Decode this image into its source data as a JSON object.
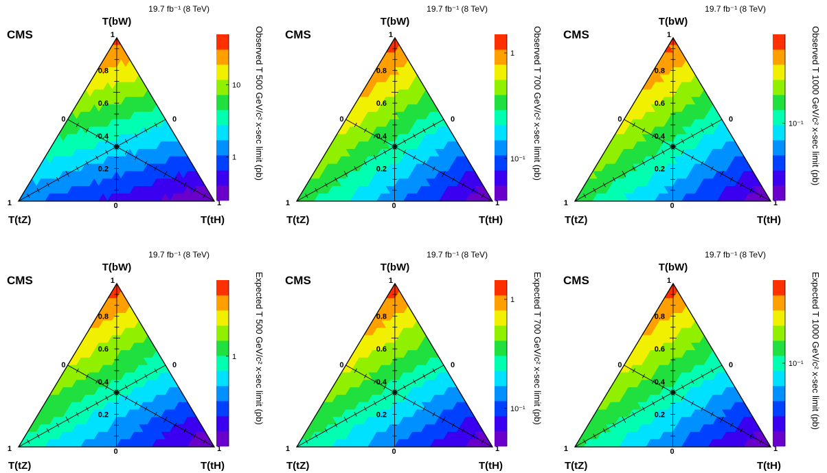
{
  "figure": {
    "lumi": "19.7 fb⁻¹ (8 TeV)",
    "experiment": "CMS"
  },
  "chart_data": [
    {
      "type": "heatmap",
      "subtype": "ternary",
      "row": "observed",
      "mass_label": "T 500",
      "title": "",
      "experiment_label": "CMS",
      "lumi_label": "19.7 fb⁻¹ (8 TeV)",
      "vertices": {
        "top": "T(bW)",
        "left": "T(tZ)",
        "right": "T(tH)"
      },
      "vertex_ticks": {
        "top": "1",
        "left": "1",
        "right": "1",
        "bottom_center": "0",
        "left_edge_mid": "0",
        "right_edge_mid": "0"
      },
      "axis_ticks": [
        "0.2",
        "0.4",
        "0.6",
        "0.8"
      ],
      "zlabel": "Observed T 500 GeV/c² x-sec limit (pb)",
      "z_ticks": [
        "1",
        "10"
      ],
      "z_scale": "log",
      "zlim": [
        0.25,
        50
      ],
      "corner_values": {
        "bW": 40,
        "tZ": 1.2,
        "tH": 0.25
      },
      "colormap": [
        "#6a00cc",
        "#3b00f0",
        "#0040ff",
        "#0090ff",
        "#00e0ff",
        "#00ffb0",
        "#20e040",
        "#90f000",
        "#f0f000",
        "#ffa000",
        "#ff3000"
      ]
    },
    {
      "type": "heatmap",
      "subtype": "ternary",
      "row": "observed",
      "mass_label": "T 700",
      "title": "",
      "experiment_label": "CMS",
      "lumi_label": "19.7 fb⁻¹ (8 TeV)",
      "vertices": {
        "top": "T(bW)",
        "left": "T(tZ)",
        "right": "T(tH)"
      },
      "vertex_ticks": {
        "top": "1",
        "left": "1",
        "right": "1",
        "bottom_center": "0",
        "left_edge_mid": "0",
        "right_edge_mid": "0"
      },
      "axis_ticks": [
        "0.2",
        "0.4",
        "0.6",
        "0.8"
      ],
      "zlabel": "Observed T 700 GeV/c² x-sec limit (pb)",
      "z_ticks": [
        "10⁻¹",
        "1"
      ],
      "z_scale": "log",
      "zlim": [
        0.04,
        1.5
      ],
      "corner_values": {
        "bW": 1.3,
        "tZ": 0.35,
        "tH": 0.04
      },
      "colormap": [
        "#6a00cc",
        "#3b00f0",
        "#0040ff",
        "#0090ff",
        "#00e0ff",
        "#00ffb0",
        "#20e040",
        "#90f000",
        "#f0f000",
        "#ffa000",
        "#ff3000"
      ]
    },
    {
      "type": "heatmap",
      "subtype": "ternary",
      "row": "observed",
      "mass_label": "T 1000",
      "title": "",
      "experiment_label": "CMS",
      "lumi_label": "19.7 fb⁻¹ (8 TeV)",
      "vertices": {
        "top": "T(bW)",
        "left": "T(tZ)",
        "right": "T(tH)"
      },
      "vertex_ticks": {
        "top": "1",
        "left": "1",
        "right": "1",
        "bottom_center": "0",
        "left_edge_mid": "0",
        "right_edge_mid": "0"
      },
      "axis_ticks": [
        "0.2",
        "0.4",
        "0.6",
        "0.8"
      ],
      "zlabel": "Observed T 1000 GeV/c² x-sec limit (pb)",
      "z_ticks": [
        "10⁻¹"
      ],
      "z_scale": "log",
      "zlim": [
        0.03,
        0.4
      ],
      "corner_values": {
        "bW": 0.35,
        "tZ": 0.14,
        "tH": 0.03
      },
      "colormap": [
        "#6a00cc",
        "#3b00f0",
        "#0040ff",
        "#0090ff",
        "#00e0ff",
        "#00ffb0",
        "#20e040",
        "#90f000",
        "#f0f000",
        "#ffa000",
        "#ff3000"
      ]
    },
    {
      "type": "heatmap",
      "subtype": "ternary",
      "row": "expected",
      "mass_label": "T 500",
      "title": "",
      "experiment_label": "CMS",
      "lumi_label": "19.7 fb⁻¹ (8 TeV)",
      "vertices": {
        "top": "T(bW)",
        "left": "T(tZ)",
        "right": "T(tH)"
      },
      "vertex_ticks": {
        "top": "1",
        "left": "1",
        "right": "1",
        "bottom_center": "0",
        "left_edge_mid": "0",
        "right_edge_mid": "0"
      },
      "axis_ticks": [
        "0.2",
        "0.4",
        "0.6",
        "0.8"
      ],
      "zlabel": "Expected T 500 GeV/c² x-sec limit (pb)",
      "z_ticks": [
        "1"
      ],
      "z_scale": "log",
      "zlim": [
        0.12,
        6
      ],
      "corner_values": {
        "bW": 5,
        "tZ": 0.9,
        "tH": 0.12
      },
      "colormap": [
        "#6a00cc",
        "#3b00f0",
        "#0040ff",
        "#0090ff",
        "#00e0ff",
        "#00ffb0",
        "#20e040",
        "#90f000",
        "#f0f000",
        "#ffa000",
        "#ff3000"
      ]
    },
    {
      "type": "heatmap",
      "subtype": "ternary",
      "row": "expected",
      "mass_label": "T 700",
      "title": "",
      "experiment_label": "CMS",
      "lumi_label": "19.7 fb⁻¹ (8 TeV)",
      "vertices": {
        "top": "T(bW)",
        "left": "T(tZ)",
        "right": "T(tH)"
      },
      "vertex_ticks": {
        "top": "1",
        "left": "1",
        "right": "1",
        "bottom_center": "0",
        "left_edge_mid": "0",
        "right_edge_mid": "0"
      },
      "axis_ticks": [
        "0.2",
        "0.4",
        "0.6",
        "0.8"
      ],
      "zlabel": "Expected T 700 GeV/c² x-sec limit (pb)",
      "z_ticks": [
        "10⁻¹",
        "1"
      ],
      "z_scale": "log",
      "zlim": [
        0.045,
        1.5
      ],
      "corner_values": {
        "bW": 1.3,
        "tZ": 0.3,
        "tH": 0.045
      },
      "colormap": [
        "#6a00cc",
        "#3b00f0",
        "#0040ff",
        "#0090ff",
        "#00e0ff",
        "#00ffb0",
        "#20e040",
        "#90f000",
        "#f0f000",
        "#ffa000",
        "#ff3000"
      ]
    },
    {
      "type": "heatmap",
      "subtype": "ternary",
      "row": "expected",
      "mass_label": "T 1000",
      "title": "",
      "experiment_label": "CMS",
      "lumi_label": "19.7 fb⁻¹ (8 TeV)",
      "vertices": {
        "top": "T(bW)",
        "left": "T(tZ)",
        "right": "T(tH)"
      },
      "vertex_ticks": {
        "top": "1",
        "left": "1",
        "right": "1",
        "bottom_center": "0",
        "left_edge_mid": "0",
        "right_edge_mid": "0"
      },
      "axis_ticks": [
        "0.2",
        "0.4",
        "0.6",
        "0.8"
      ],
      "zlabel": "Expected T 1000 GeV/c² x-sec limit (pb)",
      "z_ticks": [
        "10⁻¹"
      ],
      "z_scale": "log",
      "zlim": [
        0.025,
        0.4
      ],
      "corner_values": {
        "bW": 0.35,
        "tZ": 0.12,
        "tH": 0.025
      },
      "colormap": [
        "#6a00cc",
        "#3b00f0",
        "#0040ff",
        "#0090ff",
        "#00e0ff",
        "#00ffb0",
        "#20e040",
        "#90f000",
        "#f0f000",
        "#ffa000",
        "#ff3000"
      ]
    }
  ]
}
